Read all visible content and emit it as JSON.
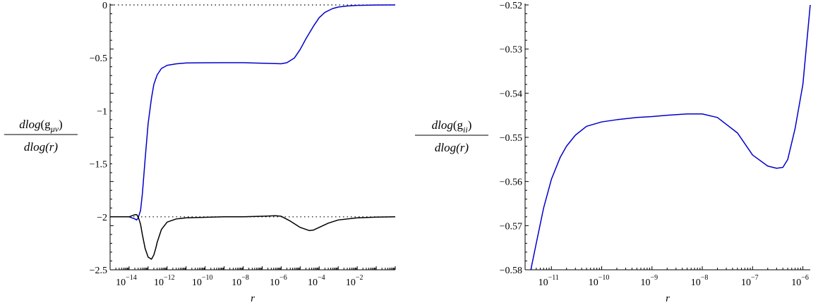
{
  "chart_data": [
    {
      "type": "line",
      "xscale": "log",
      "xlabel": "r",
      "ylabel": {
        "num_prefix": "dlog",
        "sub": "μν",
        "den": "dlog(r)"
      },
      "xlim": [
        1e-15,
        1.0
      ],
      "ylim": [
        -2.5,
        0
      ],
      "x_ticks": [
        {
          "base": "10",
          "exp": "−14",
          "value": 1e-14
        },
        {
          "base": "10",
          "exp": "−12",
          "value": 1e-12
        },
        {
          "base": "10",
          "exp": "−10",
          "value": 1e-10
        },
        {
          "base": "10",
          "exp": "−8",
          "value": 1e-08
        },
        {
          "base": "10",
          "exp": "−6",
          "value": 1e-06
        },
        {
          "base": "10",
          "exp": "−4",
          "value": 0.0001
        },
        {
          "base": "10",
          "exp": "−2",
          "value": 0.01
        }
      ],
      "y_ticks": [
        {
          "label": "0",
          "value": 0
        },
        {
          "label": "−0.5",
          "value": -0.5
        },
        {
          "label": "−1",
          "value": -1
        },
        {
          "label": "−1.5",
          "value": -1.5
        },
        {
          "label": "−2",
          "value": -2
        },
        {
          "label": "−2.5",
          "value": -2.5
        }
      ],
      "reference_lines": [
        0,
        -2
      ],
      "series": [
        {
          "color": "#0000cc",
          "x": [
            1e-15,
            5e-15,
            1e-14,
            2e-14,
            2.5e-14,
            3e-14,
            4e-14,
            5e-14,
            7e-14,
            1e-13,
            1.5e-13,
            2e-13,
            3e-13,
            5e-13,
            1e-12,
            3e-12,
            1e-11,
            1e-10,
            1e-09,
            1e-08,
            1e-07,
            1e-06,
            2e-06,
            5e-06,
            1e-05,
            2e-05,
            5e-05,
            0.0001,
            0.0002,
            0.0005,
            0.001,
            0.003,
            0.01,
            0.1,
            1.0
          ],
          "y": [
            -2.0,
            -2.0,
            -2.0,
            -2.02,
            -2.03,
            -2.01,
            -1.94,
            -1.78,
            -1.45,
            -1.12,
            -0.88,
            -0.75,
            -0.66,
            -0.6,
            -0.57,
            -0.556,
            -0.548,
            -0.546,
            -0.545,
            -0.545,
            -0.55,
            -0.555,
            -0.545,
            -0.5,
            -0.42,
            -0.32,
            -0.2,
            -0.12,
            -0.07,
            -0.035,
            -0.02,
            -0.01,
            -0.004,
            -0.001,
            0.0
          ]
        },
        {
          "color": "#000000",
          "x": [
            1e-15,
            5e-15,
            1e-14,
            2e-14,
            2.5e-14,
            3e-14,
            4e-14,
            5e-14,
            7e-14,
            1e-13,
            1.5e-13,
            2e-13,
            2.5e-13,
            3e-13,
            5e-13,
            1e-12,
            3e-12,
            1e-11,
            1e-10,
            1e-09,
            1e-08,
            1e-07,
            5e-07,
            1e-06,
            3e-06,
            1e-05,
            3e-05,
            5e-05,
            0.0001,
            0.0003,
            0.001,
            0.01,
            0.1,
            1.0
          ],
          "y": [
            -2.0,
            -2.0,
            -2.0,
            -1.98,
            -1.98,
            -2.0,
            -2.07,
            -2.17,
            -2.3,
            -2.38,
            -2.4,
            -2.36,
            -2.3,
            -2.24,
            -2.12,
            -2.05,
            -2.02,
            -2.01,
            -2.005,
            -2.0,
            -2.0,
            -1.995,
            -1.99,
            -1.995,
            -2.04,
            -2.1,
            -2.13,
            -2.125,
            -2.1,
            -2.06,
            -2.03,
            -2.01,
            -2.003,
            -2.0
          ]
        }
      ]
    },
    {
      "type": "line",
      "xscale": "log",
      "xlabel": "r",
      "ylabel": {
        "num_prefix": "dlog",
        "sub": "ii",
        "den": "dlog(r)"
      },
      "xlim": [
        3e-12,
        1.4e-06
      ],
      "ylim": [
        -0.58,
        -0.52
      ],
      "x_ticks": [
        {
          "base": "10",
          "exp": "−11",
          "value": 1e-11
        },
        {
          "base": "10",
          "exp": "−10",
          "value": 1e-10
        },
        {
          "base": "10",
          "exp": "−9",
          "value": 1e-09
        },
        {
          "base": "10",
          "exp": "−8",
          "value": 1e-08
        },
        {
          "base": "10",
          "exp": "−7",
          "value": 1e-07
        },
        {
          "base": "10",
          "exp": "−6",
          "value": 1e-06
        }
      ],
      "y_ticks": [
        {
          "label": "−0.52",
          "value": -0.52
        },
        {
          "label": "−0.53",
          "value": -0.53
        },
        {
          "label": "−0.54",
          "value": -0.54
        },
        {
          "label": "−0.55",
          "value": -0.55
        },
        {
          "label": "−0.56",
          "value": -0.56
        },
        {
          "label": "−0.57",
          "value": -0.57
        },
        {
          "label": "−0.58",
          "value": -0.58
        }
      ],
      "series": [
        {
          "color": "#0000cc",
          "x": [
            3.9e-12,
            5e-12,
            7e-12,
            1e-11,
            1.5e-11,
            2e-11,
            3e-11,
            5e-11,
            1e-10,
            2e-10,
            5e-10,
            1e-09,
            2e-09,
            5e-09,
            1e-08,
            2e-08,
            5e-08,
            1e-07,
            2e-07,
            3e-07,
            4e-07,
            5e-07,
            7e-07,
            1e-06,
            1.4e-06
          ],
          "y": [
            -0.58,
            -0.574,
            -0.566,
            -0.5595,
            -0.5545,
            -0.552,
            -0.5495,
            -0.5475,
            -0.5465,
            -0.546,
            -0.5455,
            -0.5453,
            -0.545,
            -0.5447,
            -0.5447,
            -0.5455,
            -0.549,
            -0.554,
            -0.5565,
            -0.557,
            -0.5568,
            -0.555,
            -0.548,
            -0.538,
            -0.52
          ]
        }
      ]
    }
  ]
}
